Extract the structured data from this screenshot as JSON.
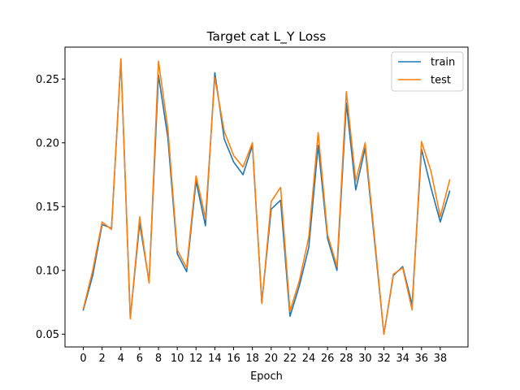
{
  "chart_data": {
    "type": "line",
    "title": "Target cat L_Y Loss",
    "xlabel": "Epoch",
    "ylabel": "",
    "xlim": [
      -1.95,
      40.95
    ],
    "ylim": [
      0.04,
      0.275
    ],
    "xticks": [
      0,
      2,
      4,
      6,
      8,
      10,
      12,
      14,
      16,
      18,
      20,
      22,
      24,
      26,
      28,
      30,
      32,
      34,
      36,
      38
    ],
    "yticks": [
      0.05,
      0.1,
      0.15,
      0.2,
      0.25
    ],
    "ytick_labels": [
      "0.05",
      "0.10",
      "0.15",
      "0.20",
      "0.25"
    ],
    "legend_position": "top-right",
    "grid": false,
    "x": [
      0,
      1,
      2,
      3,
      4,
      5,
      6,
      7,
      8,
      9,
      10,
      11,
      12,
      13,
      14,
      15,
      16,
      17,
      18,
      19,
      20,
      21,
      22,
      23,
      24,
      25,
      26,
      27,
      28,
      29,
      30,
      31,
      32,
      33,
      34,
      35,
      36,
      37,
      38,
      39
    ],
    "series": [
      {
        "name": "train",
        "color": "#1f77b4",
        "values": [
          0.069,
          0.096,
          0.136,
          0.133,
          0.265,
          0.063,
          0.137,
          0.091,
          0.253,
          0.204,
          0.113,
          0.099,
          0.17,
          0.135,
          0.255,
          0.203,
          0.185,
          0.175,
          0.198,
          0.075,
          0.148,
          0.155,
          0.064,
          0.088,
          0.118,
          0.198,
          0.125,
          0.1,
          0.231,
          0.163,
          0.196,
          0.123,
          0.05,
          0.096,
          0.103,
          0.073,
          0.195,
          0.165,
          0.138,
          0.162
        ]
      },
      {
        "name": "test",
        "color": "#ff7f0e",
        "values": [
          0.07,
          0.1,
          0.138,
          0.132,
          0.266,
          0.062,
          0.142,
          0.09,
          0.264,
          0.211,
          0.116,
          0.102,
          0.174,
          0.141,
          0.251,
          0.209,
          0.19,
          0.181,
          0.2,
          0.074,
          0.154,
          0.165,
          0.068,
          0.092,
          0.126,
          0.208,
          0.128,
          0.103,
          0.24,
          0.17,
          0.2,
          0.126,
          0.05,
          0.097,
          0.102,
          0.069,
          0.201,
          0.178,
          0.142,
          0.171
        ]
      }
    ]
  }
}
